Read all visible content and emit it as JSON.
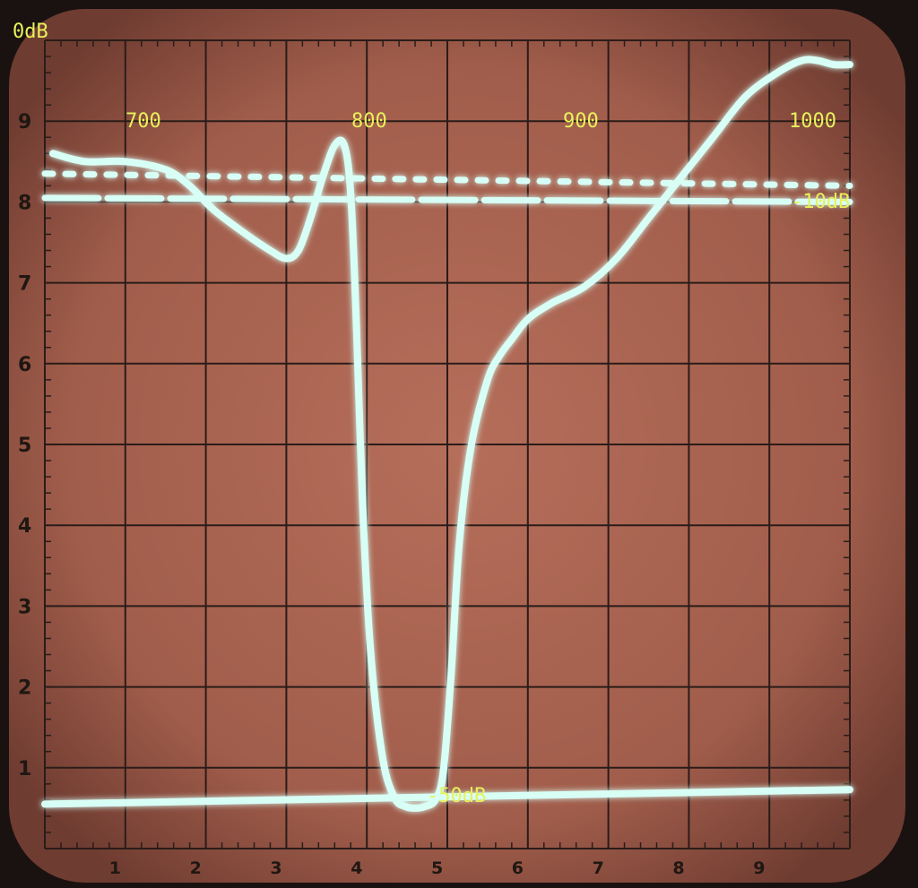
{
  "chart_data": {
    "type": "line",
    "labels": {
      "top_db": "0dB",
      "mid_db": "-10dB",
      "bottom_db": "-50dB"
    },
    "freq_ticks": [
      "700",
      "800",
      "900",
      "1000"
    ],
    "y_scale": [
      "9",
      "8",
      "7",
      "6",
      "5",
      "4",
      "3",
      "2",
      "1"
    ],
    "x_scale": [
      "1",
      "2",
      "3",
      "4",
      "5",
      "6",
      "7",
      "8",
      "9"
    ],
    "x_range_div": [
      0,
      10
    ],
    "y_range_div": [
      0,
      10
    ],
    "grid": true,
    "series": [
      {
        "style": "solid",
        "x": [
          0.1,
          0.5,
          1.0,
          1.5,
          1.8,
          2.1,
          2.5,
          2.8,
          3.0,
          3.15,
          3.3,
          3.45,
          3.6,
          3.72,
          3.8,
          3.87,
          3.95,
          4.05,
          4.2,
          4.35,
          4.48,
          4.6,
          4.72,
          4.85,
          4.95,
          5.05,
          5.15,
          5.3,
          5.5,
          5.65,
          5.8,
          6.0,
          6.3,
          6.7,
          7.1,
          7.5,
          7.9,
          8.3,
          8.7,
          9.1,
          9.4,
          9.6,
          9.8,
          10.0
        ],
        "y": [
          8.6,
          8.5,
          8.5,
          8.4,
          8.2,
          7.9,
          7.6,
          7.4,
          7.3,
          7.4,
          7.8,
          8.3,
          8.7,
          8.7,
          8.1,
          6.5,
          4.2,
          2.4,
          1.1,
          0.62,
          0.52,
          0.5,
          0.52,
          0.6,
          0.95,
          2.2,
          3.8,
          5.0,
          5.8,
          6.1,
          6.3,
          6.55,
          6.75,
          6.95,
          7.3,
          7.8,
          8.3,
          8.8,
          9.3,
          9.6,
          9.75,
          9.75,
          9.7,
          9.7
        ]
      },
      {
        "style": "dashed",
        "x": [
          0,
          10
        ],
        "y": [
          8.05,
          8.0
        ]
      },
      {
        "style": "dotted",
        "x": [
          0,
          10
        ],
        "y": [
          8.35,
          8.2
        ]
      },
      {
        "style": "solid",
        "x": [
          0,
          10
        ],
        "y": [
          0.55,
          0.73
        ]
      }
    ],
    "colors": {
      "screen": "#a8624f",
      "trace": "#d8fff6",
      "grid": "#2a1c19",
      "label": "#e8f25a"
    }
  }
}
